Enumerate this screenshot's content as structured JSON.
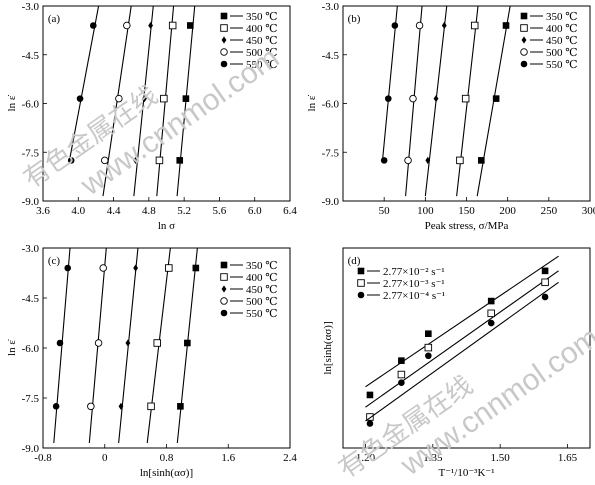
{
  "watermark": {
    "cn": "有色金属在线",
    "url": "www.cnnmol.com"
  },
  "chart_data": [
    {
      "type": "scatter",
      "panel_label": "(a)",
      "xlabel": "ln σ",
      "ylabel": "ln ε̇",
      "xlim": [
        3.6,
        6.4
      ],
      "ylim": [
        -9.0,
        -3.0
      ],
      "xticks": [
        3.6,
        4.0,
        4.4,
        4.8,
        5.2,
        5.6,
        6.0,
        6.4
      ],
      "xtick_labels": [
        "3.6",
        "4.0",
        "4.4",
        "4.8",
        "5.2",
        "5.6",
        "6.0",
        "6.4"
      ],
      "yticks": [
        -3.0,
        -4.5,
        -6.0,
        -7.5,
        -9.0
      ],
      "ytick_labels": [
        "-3.0",
        "-4.5",
        "-6.0",
        "-7.5",
        "-9.0"
      ],
      "legend_position": "top-right",
      "series": [
        {
          "name": "350 ℃",
          "marker": "square-filled",
          "x": [
            5.15,
            5.22,
            5.27
          ],
          "y": [
            -7.75,
            -5.85,
            -3.6
          ],
          "fit": {
            "y_at_top": -3.0,
            "x_top": 5.32,
            "y_at_bottom": -8.85,
            "x_bottom": 5.12
          }
        },
        {
          "name": "400 ℃",
          "marker": "square-open",
          "x": [
            4.92,
            4.97,
            5.07
          ],
          "y": [
            -7.75,
            -5.85,
            -3.6
          ],
          "fit": {
            "y_at_top": -3.0,
            "x_top": 5.08,
            "y_at_bottom": -8.85,
            "x_bottom": 4.89
          }
        },
        {
          "name": "450 ℃",
          "marker": "diamond-filled",
          "x": [
            4.65,
            4.75,
            4.82
          ],
          "y": [
            -7.75,
            -5.85,
            -3.6
          ],
          "fit": {
            "y_at_top": -3.0,
            "x_top": 4.85,
            "y_at_bottom": -8.85,
            "x_bottom": 4.63
          }
        },
        {
          "name": "500 ℃",
          "marker": "circle-open",
          "x": [
            4.3,
            4.46,
            4.55
          ],
          "y": [
            -7.75,
            -5.85,
            -3.6
          ],
          "fit": {
            "y_at_top": -3.0,
            "x_top": 4.6,
            "y_at_bottom": -8.85,
            "x_bottom": 4.28
          }
        },
        {
          "name": "550 ℃",
          "marker": "circle-filled",
          "x": [
            3.92,
            4.02,
            4.17
          ],
          "y": [
            -7.75,
            -5.85,
            -3.6
          ],
          "fit": {
            "y_at_top": -3.0,
            "x_top": 4.23,
            "y_at_bottom": -7.75,
            "x_bottom": 3.9
          }
        }
      ]
    },
    {
      "type": "scatter",
      "panel_label": "(b)",
      "xlabel": "Peak stress, σ/MPa",
      "ylabel": "ln ε̇",
      "xlim": [
        0,
        300
      ],
      "ylim": [
        -9.0,
        -3.0
      ],
      "xticks": [
        50,
        100,
        150,
        200,
        250,
        300
      ],
      "xtick_labels": [
        "50",
        "100",
        "150",
        "200",
        "250",
        "300"
      ],
      "yticks": [
        -3.0,
        -4.5,
        -6.0,
        -7.5,
        -9.0
      ],
      "ytick_labels": [
        "-3.0",
        "-4.5",
        "-6.0",
        "-7.5",
        "-9.0"
      ],
      "legend_position": "top-right",
      "series": [
        {
          "name": "350 ℃",
          "marker": "square-filled",
          "x": [
            168,
            186,
            198
          ],
          "y": [
            -7.75,
            -5.85,
            -3.6
          ],
          "fit": {
            "x_top": 203,
            "y_top": -3.0,
            "x_bottom": 163,
            "y_bottom": -8.85
          }
        },
        {
          "name": "400 ℃",
          "marker": "square-open",
          "x": [
            142,
            149,
            160
          ],
          "y": [
            -7.75,
            -5.85,
            -3.6
          ],
          "fit": {
            "x_top": 164,
            "y_top": -3.0,
            "x_bottom": 138,
            "y_bottom": -8.85
          }
        },
        {
          "name": "450 ℃",
          "marker": "diamond-filled",
          "x": [
            103,
            113,
            123
          ],
          "y": [
            -7.75,
            -5.85,
            -3.6
          ],
          "fit": {
            "x_top": 126,
            "y_top": -3.0,
            "x_bottom": 100,
            "y_bottom": -8.85
          }
        },
        {
          "name": "500 ℃",
          "marker": "circle-open",
          "x": [
            79,
            85,
            93
          ],
          "y": [
            -7.75,
            -5.85,
            -3.6
          ],
          "fit": {
            "x_top": 96,
            "y_top": -3.0,
            "x_bottom": 76,
            "y_bottom": -8.85
          }
        },
        {
          "name": "550 ℃",
          "marker": "circle-filled",
          "x": [
            50,
            55,
            63
          ],
          "y": [
            -7.75,
            -5.85,
            -3.6
          ],
          "fit": {
            "x_top": 66,
            "y_top": -3.0,
            "x_bottom": 48,
            "y_bottom": -7.75
          }
        }
      ]
    },
    {
      "type": "scatter",
      "panel_label": "(c)",
      "xlabel": "ln[sinh(ασ)]",
      "ylabel": "ln ε̇",
      "xlim": [
        -0.8,
        2.4
      ],
      "ylim": [
        -9.0,
        -3.0
      ],
      "xticks": [
        -0.8,
        0,
        0.8,
        1.6,
        2.4
      ],
      "xtick_labels": [
        "-0.8",
        "0",
        "0.8",
        "1.6",
        "2.4"
      ],
      "yticks": [
        -3.0,
        -4.5,
        -6.0,
        -7.5,
        -9.0
      ],
      "ytick_labels": [
        "-3.0",
        "-4.5",
        "-6.0",
        "-7.5",
        "-9.0"
      ],
      "legend_position": "top-right",
      "series": [
        {
          "name": "350 ℃",
          "marker": "square-filled",
          "x": [
            0.98,
            1.07,
            1.18
          ],
          "y": [
            -7.75,
            -5.85,
            -3.6
          ],
          "fit": {
            "x_top": 1.2,
            "y_top": -3.0,
            "x_bottom": 0.94,
            "y_bottom": -8.85
          }
        },
        {
          "name": "400 ℃",
          "marker": "square-open",
          "x": [
            0.6,
            0.68,
            0.83
          ],
          "y": [
            -7.75,
            -5.85,
            -3.6
          ],
          "fit": {
            "x_top": 0.85,
            "y_top": -3.0,
            "x_bottom": 0.55,
            "y_bottom": -8.85
          }
        },
        {
          "name": "450 ℃",
          "marker": "diamond-filled",
          "x": [
            0.21,
            0.3,
            0.4
          ],
          "y": [
            -7.75,
            -5.85,
            -3.6
          ],
          "fit": {
            "x_top": 0.43,
            "y_top": -3.0,
            "x_bottom": 0.18,
            "y_bottom": -8.85
          }
        },
        {
          "name": "500 ℃",
          "marker": "circle-open",
          "x": [
            -0.18,
            -0.08,
            -0.02
          ],
          "y": [
            -7.75,
            -5.85,
            -3.6
          ],
          "fit": {
            "x_top": 0.02,
            "y_top": -3.0,
            "x_bottom": -0.2,
            "y_bottom": -8.85
          }
        },
        {
          "name": "550 ℃",
          "marker": "circle-filled",
          "x": [
            -0.63,
            -0.58,
            -0.48
          ],
          "y": [
            -7.75,
            -5.85,
            -3.6
          ],
          "fit": {
            "x_top": -0.45,
            "y_top": -3.0,
            "x_bottom": -0.66,
            "y_bottom": -8.85
          }
        }
      ]
    },
    {
      "type": "scatter",
      "panel_label": "(d)",
      "xlabel": "T⁻¹/10⁻³K⁻¹",
      "ylabel": "ln[sinh(ασ)]",
      "xlim": [
        1.15,
        1.7
      ],
      "ylim": [
        -0.95,
        1.5
      ],
      "xticks": [
        1.2,
        1.35,
        1.5,
        1.65
      ],
      "xtick_labels": [
        "1.20",
        "1.35",
        "1.50",
        "1.65"
      ],
      "yticks": [],
      "ytick_labels": [],
      "legend_position": "top-left",
      "series": [
        {
          "name": "2.77×10⁻² s⁻¹",
          "marker": "square-filled",
          "x": [
            1.21,
            1.28,
            1.34,
            1.48,
            1.6
          ],
          "y": [
            -0.3,
            0.12,
            0.45,
            0.85,
            1.22
          ],
          "fit": {
            "x0": 1.2,
            "y0": -0.2,
            "x1": 1.63,
            "y1": 1.4
          }
        },
        {
          "name": "2.77×10⁻³ s⁻¹",
          "marker": "square-open",
          "x": [
            1.21,
            1.28,
            1.34,
            1.48,
            1.6
          ],
          "y": [
            -0.57,
            -0.05,
            0.28,
            0.7,
            1.08
          ],
          "fit": {
            "x0": 1.2,
            "y0": -0.45,
            "x1": 1.63,
            "y1": 1.22
          }
        },
        {
          "name": "2.77×10⁻⁴ s⁻¹",
          "marker": "circle-filled",
          "x": [
            1.21,
            1.28,
            1.34,
            1.48,
            1.6
          ],
          "y": [
            -0.65,
            -0.15,
            0.18,
            0.58,
            0.9
          ],
          "fit": {
            "x0": 1.2,
            "y0": -0.62,
            "x1": 1.63,
            "y1": 1.08
          }
        }
      ]
    }
  ]
}
